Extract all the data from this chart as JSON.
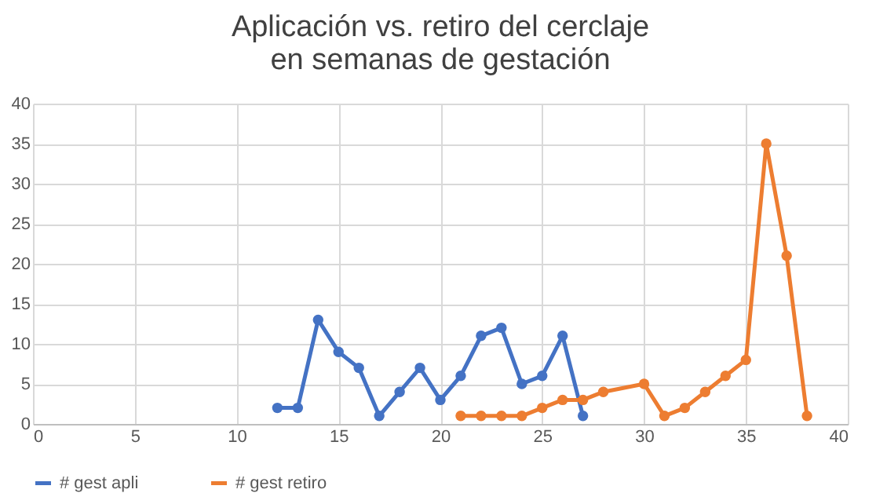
{
  "chart_data": {
    "type": "line",
    "title": "Aplicación vs. retiro del cerclaje\nen semanas de gestación",
    "series": [
      {
        "name": "# gest apli",
        "color": "#4472c4",
        "x": [
          12,
          13,
          14,
          15,
          16,
          17,
          18,
          19,
          20,
          21,
          22,
          23,
          24,
          25,
          26,
          27
        ],
        "values": [
          2,
          2,
          13,
          9,
          7,
          1,
          4,
          7,
          3,
          6,
          11,
          12,
          5,
          6,
          11,
          1
        ]
      },
      {
        "name": "# gest retiro",
        "color": "#ed7d31",
        "x": [
          21,
          22,
          23,
          24,
          25,
          26,
          27,
          28,
          30,
          31,
          32,
          33,
          34,
          35,
          36,
          37,
          38
        ],
        "values": [
          1,
          1,
          1,
          1,
          2,
          3,
          3,
          4,
          5,
          1,
          2,
          4,
          6,
          8,
          35,
          21,
          1
        ]
      }
    ],
    "xlim": [
      0,
      40
    ],
    "xticks": [
      0,
      5,
      10,
      15,
      20,
      25,
      30,
      35,
      40
    ],
    "ylim": [
      0,
      40
    ],
    "yticks": [
      0,
      5,
      10,
      15,
      20,
      25,
      30,
      35,
      40
    ],
    "grid": true,
    "legend": "bottom",
    "marker": "circle",
    "line_style": "solid"
  }
}
